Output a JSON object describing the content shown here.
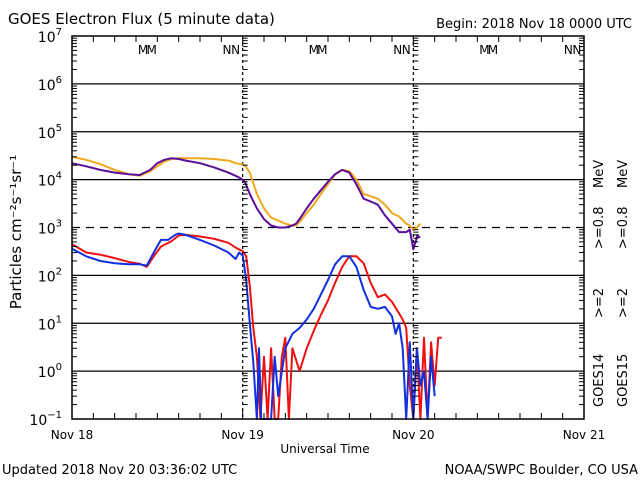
{
  "header": {
    "title": "GOES Electron Flux (5 minute data)",
    "begin": "Begin: 2018 Nov 18 0000 UTC"
  },
  "footer": {
    "updated": "Updated 2018 Nov 20 03:36:02 UTC",
    "credit": "NOAA/SWPC Boulder, CO USA"
  },
  "colors": {
    "goes14_08": "#5a0f9a",
    "goes15_08": "#f2a81d",
    "goes14_2": "#1030e0",
    "goes15_2": "#ee1010",
    "axis": "#000000"
  },
  "chart_data": {
    "type": "line",
    "title": "GOES Electron Flux (5 minute data)",
    "xlabel": "Universal Time",
    "ylabel": "Particles cm⁻²s⁻¹sr⁻¹",
    "yscale": "log",
    "ylim": [
      0.1,
      10000000
    ],
    "xlim": [
      0,
      72
    ],
    "x_unit": "hours since 2018 Nov 18 0000 UTC",
    "grid": true,
    "threshold_line": 1000,
    "x_tick_labels": [
      {
        "hour": 0,
        "label": "Nov 18"
      },
      {
        "hour": 24,
        "label": "Nov 19"
      },
      {
        "hour": 48,
        "label": "Nov 20"
      },
      {
        "hour": 72,
        "label": "Nov 21"
      }
    ],
    "y_tick_labels": [
      {
        "exp": 7,
        "base": "10",
        "sup": "7"
      },
      {
        "exp": 6,
        "base": "10",
        "sup": "6"
      },
      {
        "exp": 5,
        "base": "10",
        "sup": "5"
      },
      {
        "exp": 4,
        "base": "10",
        "sup": "4"
      },
      {
        "exp": 3,
        "base": "10",
        "sup": "3"
      },
      {
        "exp": 2,
        "base": "10",
        "sup": "2"
      },
      {
        "exp": 1,
        "base": "10",
        "sup": "1"
      },
      {
        "exp": 0,
        "base": "10",
        "sup": "0"
      },
      {
        "exp": -1,
        "base": "10",
        "sup": "−1"
      }
    ],
    "markers": [
      {
        "hour": 10.0,
        "label": "M",
        "sat": "GOES14"
      },
      {
        "hour": 11.2,
        "label": "M",
        "sat": "GOES15"
      },
      {
        "hour": 21.8,
        "label": "N",
        "sat": "GOES14"
      },
      {
        "hour": 23.0,
        "label": "N",
        "sat": "GOES15"
      },
      {
        "hour": 34.0,
        "label": "M",
        "sat": "GOES14"
      },
      {
        "hour": 35.2,
        "label": "M",
        "sat": "GOES15"
      },
      {
        "hour": 45.8,
        "label": "N",
        "sat": "GOES14"
      },
      {
        "hour": 47.0,
        "label": "N",
        "sat": "GOES15"
      },
      {
        "hour": 58.0,
        "label": "M",
        "sat": "GOES14"
      },
      {
        "hour": 59.2,
        "label": "M",
        "sat": "GOES15"
      },
      {
        "hour": 69.8,
        "label": "N",
        "sat": "GOES14"
      },
      {
        "hour": 71.0,
        "label": "N",
        "sat": "GOES15"
      }
    ],
    "legend": {
      "placement": "right",
      "unit": "MeV",
      "rows": [
        {
          "sat": "GOES14",
          "energy": ">=0.8",
          "unit": "MeV",
          "color_key": "goes14_08"
        },
        {
          "sat": "GOES15",
          "energy": ">=0.8",
          "unit": "MeV",
          "color_key": "goes15_08"
        },
        {
          "sat": "GOES14",
          "energy": ">=2",
          "color_key": "goes14_2"
        },
        {
          "sat": "GOES15",
          "energy": ">=2",
          "color_key": "goes15_2"
        }
      ],
      "sat_labels": [
        "GOES14",
        "GOES15"
      ],
      "e2_labels": [
        ">=2",
        ">=2"
      ],
      "e08_labels": [
        ">=0.8",
        ">=0.8"
      ],
      "unit_labels": [
        "MeV",
        "MeV"
      ]
    },
    "series": [
      {
        "name": "GOES15 >=0.8 MeV",
        "color_key": "goes15_08",
        "x": [
          0,
          2,
          4,
          6,
          8,
          9.5,
          11,
          12,
          13,
          14,
          15,
          16,
          18,
          20,
          22,
          23,
          23.8,
          24.3,
          25,
          26,
          27,
          28,
          29,
          30,
          31,
          31.5,
          32,
          33,
          34,
          35,
          36,
          37,
          38,
          39,
          40,
          41,
          42,
          43,
          44,
          45,
          46,
          47,
          47.5,
          48,
          48.5,
          49
        ],
        "y": [
          30000,
          26000,
          21000,
          16000,
          13000,
          12000,
          15000,
          19000,
          24000,
          27000,
          28000,
          28000,
          28000,
          27000,
          25000,
          22000,
          21000,
          20000,
          14000,
          5000,
          2500,
          1600,
          1400,
          1200,
          1100,
          1100,
          1300,
          2000,
          3000,
          5000,
          8000,
          13000,
          16000,
          15000,
          10000,
          5000,
          4500,
          4000,
          3000,
          2000,
          1700,
          1200,
          1100,
          900,
          1000,
          1200
        ]
      },
      {
        "name": "GOES14 >=0.8 MeV",
        "color_key": "goes14_08",
        "x": [
          0,
          2,
          4,
          6,
          8,
          9.5,
          11,
          12,
          13,
          14,
          15,
          16,
          18,
          20,
          22,
          23,
          23.8,
          24.3,
          25,
          26,
          27,
          28,
          29,
          30,
          31,
          31.5,
          32,
          33,
          34,
          35,
          36,
          37,
          38,
          39,
          40,
          41,
          42,
          43,
          44,
          45,
          46,
          46.5,
          47,
          47.5,
          48,
          48.3,
          48.6,
          48.9
        ],
        "y": [
          22000,
          19000,
          16000,
          14000,
          13000,
          12500,
          16000,
          22000,
          26000,
          28000,
          27000,
          25000,
          22000,
          18000,
          14000,
          12000,
          10500,
          9000,
          5000,
          2500,
          1500,
          1100,
          1000,
          1000,
          1100,
          1200,
          1500,
          2500,
          4000,
          6000,
          9000,
          13000,
          16000,
          14000,
          8000,
          4000,
          3500,
          3000,
          1800,
          1200,
          800,
          800,
          800,
          900,
          350,
          500,
          700,
          600
        ]
      },
      {
        "name": "GOES15 >=2 MeV",
        "color_key": "goes15_2",
        "x": [
          0,
          2,
          4,
          6,
          8,
          9.5,
          10.5,
          11.5,
          12.5,
          14,
          15,
          16,
          18,
          20,
          22,
          23,
          24,
          24.5,
          25,
          25.5,
          26,
          26.5,
          27,
          27.5,
          28,
          28.5,
          29,
          29.5,
          30,
          30.5,
          31,
          32,
          33,
          34,
          35,
          36,
          37,
          38,
          39,
          40,
          41,
          42,
          43,
          44,
          45,
          46,
          46.5,
          47,
          47.5,
          48,
          48.5,
          49,
          49.5,
          50,
          50.5,
          51,
          51.5,
          52
        ],
        "y": [
          450,
          300,
          270,
          230,
          190,
          175,
          150,
          250,
          400,
          520,
          680,
          700,
          650,
          580,
          480,
          380,
          320,
          250,
          60,
          8,
          2,
          0.1,
          2,
          0.1,
          3,
          0.1,
          0.1,
          2,
          5,
          0.1,
          3,
          1,
          3,
          7,
          15,
          30,
          70,
          150,
          250,
          250,
          180,
          70,
          35,
          40,
          28,
          16,
          12,
          8,
          0.5,
          0.1,
          3,
          0.1,
          5,
          0.1,
          4,
          0.5,
          5,
          5
        ]
      },
      {
        "name": "GOES14 >=2 MeV",
        "color_key": "goes14_2",
        "x": [
          0,
          2,
          4,
          6,
          8,
          9.5,
          10.5,
          11.5,
          12.5,
          13.5,
          14.5,
          15,
          16,
          18,
          20,
          22,
          23,
          23.5,
          24,
          24.5,
          25,
          25.5,
          26,
          26.3,
          26.6,
          27,
          28,
          28.5,
          29,
          30,
          31,
          32,
          33,
          34,
          35,
          36,
          37,
          38,
          39,
          40,
          41,
          42,
          43,
          44,
          45,
          45.5,
          46,
          46.5,
          47,
          47.5,
          48,
          48.5,
          49,
          49.5,
          50,
          50.5,
          51
        ],
        "y": [
          360,
          250,
          200,
          180,
          170,
          170,
          160,
          300,
          550,
          550,
          700,
          750,
          700,
          550,
          420,
          300,
          220,
          300,
          260,
          80,
          10,
          1.5,
          0.1,
          3,
          0.1,
          0.1,
          0.1,
          2,
          0.3,
          3,
          6,
          8,
          12,
          20,
          40,
          80,
          170,
          250,
          250,
          150,
          50,
          22,
          20,
          22,
          14,
          6,
          10,
          3,
          0.1,
          4,
          0.1,
          3,
          0.5,
          1,
          0.1,
          2,
          0.3
        ]
      }
    ]
  }
}
